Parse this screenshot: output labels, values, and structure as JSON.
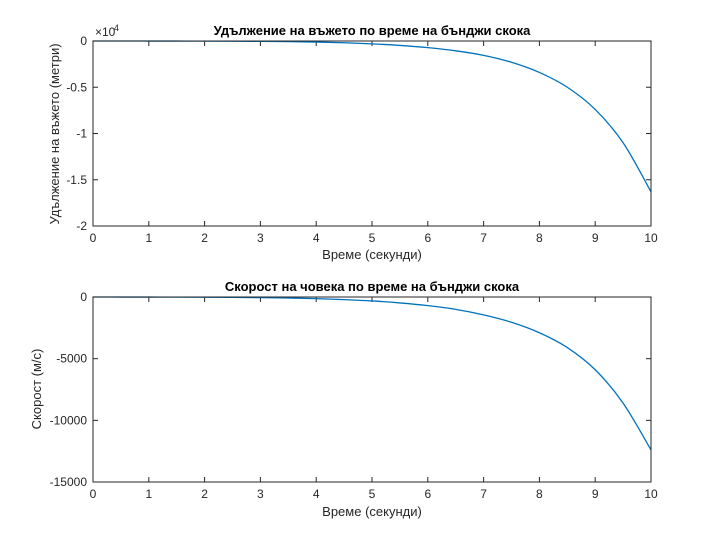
{
  "chart_data": [
    {
      "type": "line",
      "title": "Удължение на въжето по време на бънджи скока",
      "xlabel": "Време (секунди)",
      "ylabel": "Удължение на въжето (метри)",
      "xlim": [
        0,
        10
      ],
      "ylim": [
        -20000,
        0
      ],
      "x_ticks": [
        "0",
        "1",
        "2",
        "3",
        "4",
        "5",
        "6",
        "7",
        "8",
        "9",
        "10"
      ],
      "y_ticks": [
        "0",
        "-0.5",
        "-1",
        "-1.5",
        "-2"
      ],
      "y_exponent_base": "×10",
      "y_exponent_power": "4",
      "grid": false,
      "series": [
        {
          "color": "#0072BD",
          "x": [
            0,
            0.5,
            1,
            1.5,
            2,
            2.5,
            3,
            3.5,
            4,
            4.5,
            5,
            5.5,
            6,
            6.5,
            7,
            7.5,
            8,
            8.5,
            9,
            9.5,
            10
          ],
          "y": [
            0,
            -2,
            -4,
            -9,
            -15,
            -25,
            -42,
            -70,
            -115,
            -190,
            -310,
            -480,
            -720,
            -1060,
            -1550,
            -2300,
            -3400,
            -5000,
            -7400,
            -11000,
            -16300
          ]
        }
      ]
    },
    {
      "type": "line",
      "title": "Скорост на човека по време на бънджи скока",
      "xlabel": "Време (секунди)",
      "ylabel": "Скорост (м/с)",
      "xlim": [
        0,
        10
      ],
      "ylim": [
        -15000,
        0
      ],
      "x_ticks": [
        "0",
        "1",
        "2",
        "3",
        "4",
        "5",
        "6",
        "7",
        "8",
        "9",
        "10"
      ],
      "y_ticks": [
        "0",
        "-5000",
        "-10000",
        "-15000"
      ],
      "grid": false,
      "series": [
        {
          "color": "#0072BD",
          "x": [
            0,
            0.5,
            1,
            1.5,
            2,
            2.5,
            3,
            3.5,
            4,
            4.5,
            5,
            5.5,
            6,
            6.5,
            7,
            7.5,
            8,
            8.5,
            9,
            9.5,
            10
          ],
          "y": [
            0,
            -3,
            -6,
            -10,
            -18,
            -30,
            -50,
            -82,
            -130,
            -210,
            -320,
            -480,
            -700,
            -1000,
            -1450,
            -2050,
            -2900,
            -4100,
            -5900,
            -8600,
            -12400
          ]
        }
      ]
    }
  ]
}
